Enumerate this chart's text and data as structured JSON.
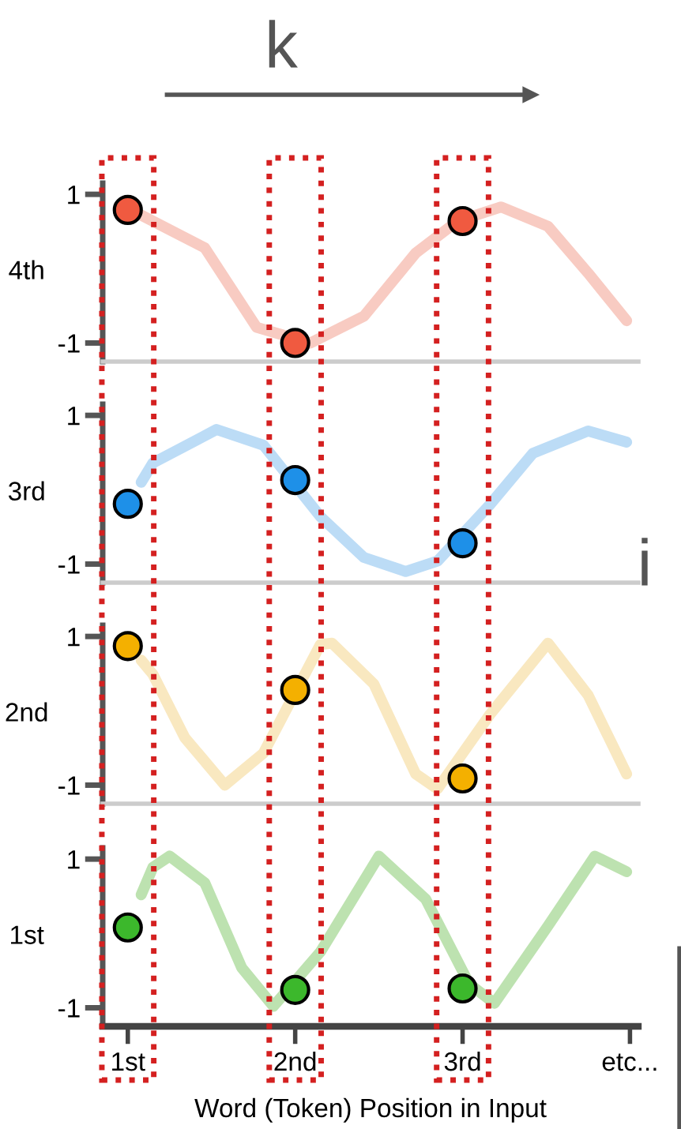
{
  "chart_data": [
    {
      "type": "line",
      "ylabel": "4th",
      "xlim": [
        0.85,
        4.05
      ],
      "ylim": [
        -1.25,
        1.15
      ],
      "yticks": [
        -1,
        1
      ],
      "tick_labels": "y",
      "annotations": [
        "k",
        "i"
      ],
      "series": [
        {
          "color": "#f8cbc2",
          "x": [
            1.08,
            1.46,
            1.77,
            2.09,
            2.41,
            2.72,
            2.97,
            3.23,
            3.51,
            3.75,
            3.98
          ],
          "values": [
            0.72,
            0.28,
            -0.79,
            -1.0,
            -0.64,
            0.21,
            0.64,
            0.83,
            0.57,
            -0.06,
            -0.7
          ]
        },
        {
          "type": "scatter",
          "marker": "circle",
          "color": "#f05a40",
          "x": [
            1,
            2,
            3
          ],
          "values": [
            0.79,
            -1.0,
            0.64
          ]
        }
      ]
    },
    {
      "type": "line",
      "ylabel": "3rd",
      "xlim": [
        0.85,
        4.05
      ],
      "ylim": [
        -1.25,
        1.15
      ],
      "yticks": [
        -1,
        1
      ],
      "tick_labels": "y",
      "series": [
        {
          "color": "#bcdcf6",
          "x": [
            1.08,
            1.15,
            1.53,
            1.81,
            2.15,
            2.41,
            2.66,
            2.85,
            3.16,
            3.42,
            3.75,
            3.98
          ],
          "values": [
            0.1,
            0.36,
            0.81,
            0.6,
            -0.36,
            -0.91,
            -1.1,
            -0.96,
            -0.21,
            0.49,
            0.79,
            0.64
          ]
        },
        {
          "type": "scatter",
          "marker": "circle",
          "color": "#1e90e8",
          "x": [
            1,
            2,
            3
          ],
          "values": [
            -0.19,
            0.13,
            -0.72
          ]
        }
      ]
    },
    {
      "type": "line",
      "ylabel": "2nd",
      "xlim": [
        0.85,
        4.05
      ],
      "ylim": [
        -1.25,
        1.15
      ],
      "yticks": [
        -1,
        1
      ],
      "tick_labels": "y",
      "series": [
        {
          "color": "#f9e8c0",
          "x": [
            1.08,
            1.15,
            1.34,
            1.58,
            1.81,
            2.15,
            2.22,
            2.47,
            2.72,
            2.85,
            3.16,
            3.51,
            3.75,
            3.98
          ],
          "values": [
            0.68,
            0.49,
            -0.36,
            -1.0,
            -0.57,
            0.89,
            0.91,
            0.36,
            -0.85,
            -1.05,
            -0.06,
            0.91,
            0.21,
            -0.85
          ]
        },
        {
          "type": "scatter",
          "marker": "circle",
          "color": "#f4b000",
          "x": [
            1,
            2,
            3
          ],
          "values": [
            0.87,
            0.28,
            -0.91
          ]
        }
      ]
    },
    {
      "type": "line",
      "ylabel": "1st",
      "xlabel": "Word (Token) Position in Input",
      "xlim": [
        0.85,
        4.05
      ],
      "xticks": [
        {
          "value": 1,
          "label": "1st"
        },
        {
          "value": 2,
          "label": "2nd"
        },
        {
          "value": 3,
          "label": "3rd"
        },
        {
          "value": 4,
          "label": "etc..."
        }
      ],
      "ylim": [
        -1.25,
        1.15
      ],
      "yticks": [
        -1,
        1
      ],
      "series": [
        {
          "color": "#bde2b0",
          "x": [
            1.08,
            1.15,
            1.25,
            1.46,
            1.68,
            1.87,
            2.15,
            2.5,
            2.78,
            3.04,
            3.19,
            3.51,
            3.79,
            3.98
          ],
          "values": [
            0.52,
            0.89,
            1.04,
            0.68,
            -0.46,
            -0.98,
            -0.25,
            1.04,
            0.46,
            -0.68,
            -0.94,
            0.1,
            1.04,
            0.83
          ]
        },
        {
          "type": "scatter",
          "marker": "circle",
          "color": "#3cb82c",
          "x": [
            1,
            2,
            3
          ],
          "values": [
            0.08,
            -0.76,
            -0.74
          ]
        }
      ]
    }
  ]
}
